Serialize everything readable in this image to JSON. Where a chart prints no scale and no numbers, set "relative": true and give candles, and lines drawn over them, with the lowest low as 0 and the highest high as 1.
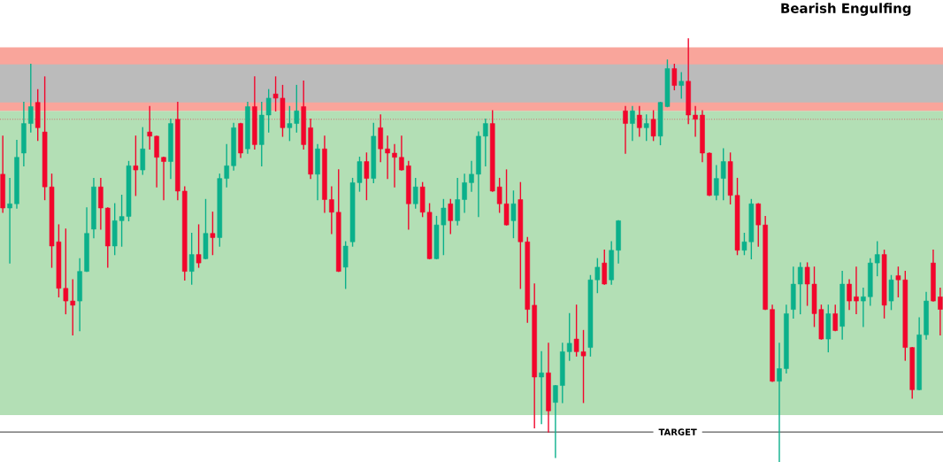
{
  "chart_data": {
    "type": "candlestick",
    "relative": true,
    "categories": [
      null,
      null,
      null,
      null,
      null,
      null,
      null,
      null,
      null,
      null,
      null,
      null,
      null,
      null,
      null,
      null,
      null,
      null,
      null,
      null,
      null,
      null,
      null,
      null,
      null,
      null,
      null,
      null,
      null,
      null,
      null,
      null,
      null,
      null,
      null,
      null,
      null,
      null,
      null,
      null,
      null,
      null,
      null,
      null,
      null,
      null,
      null,
      null,
      null,
      null,
      null,
      null,
      null,
      null,
      null,
      null,
      null,
      null,
      null,
      null,
      null,
      null,
      null,
      null,
      null,
      null,
      null,
      null,
      null,
      null,
      null,
      null,
      null,
      null,
      null,
      null,
      null,
      null,
      null,
      null,
      null,
      null,
      null,
      null,
      null,
      null,
      null,
      null,
      null,
      null,
      null,
      null,
      null,
      null,
      null,
      null,
      null,
      null,
      null,
      null,
      null,
      null,
      null,
      null,
      null,
      null,
      null,
      null,
      null,
      null,
      null,
      null,
      null,
      null,
      null,
      null,
      null,
      null,
      null,
      null,
      null,
      null,
      null,
      null,
      null,
      null,
      null,
      null,
      null,
      null,
      null,
      null,
      null,
      null,
      null
    ],
    "ohlc": [
      [
        0.68,
        0.77,
        0.59,
        0.6
      ],
      [
        0.6,
        0.67,
        0.47,
        0.61
      ],
      [
        0.61,
        0.76,
        0.6,
        0.72
      ],
      [
        0.73,
        0.85,
        0.7,
        0.8
      ],
      [
        0.8,
        0.94,
        0.78,
        0.84
      ],
      [
        0.85,
        0.88,
        0.76,
        0.79
      ],
      [
        0.78,
        0.91,
        0.62,
        0.65
      ],
      [
        0.65,
        0.68,
        0.46,
        0.51
      ],
      [
        0.52,
        0.56,
        0.39,
        0.41
      ],
      [
        0.41,
        0.55,
        0.35,
        0.38
      ],
      [
        0.38,
        0.43,
        0.3,
        0.37
      ],
      [
        0.38,
        0.48,
        0.31,
        0.45
      ],
      [
        0.45,
        0.6,
        0.45,
        0.54
      ],
      [
        0.55,
        0.67,
        0.53,
        0.65
      ],
      [
        0.65,
        0.67,
        0.55,
        0.6
      ],
      [
        0.6,
        0.6,
        0.46,
        0.51
      ],
      [
        0.51,
        0.61,
        0.49,
        0.57
      ],
      [
        0.57,
        0.63,
        0.51,
        0.58
      ],
      [
        0.58,
        0.71,
        0.57,
        0.7
      ],
      [
        0.7,
        0.77,
        0.63,
        0.69
      ],
      [
        0.69,
        0.79,
        0.68,
        0.74
      ],
      [
        0.78,
        0.84,
        0.74,
        0.77
      ],
      [
        0.77,
        0.77,
        0.65,
        0.72
      ],
      [
        0.72,
        0.72,
        0.62,
        0.71
      ],
      [
        0.71,
        0.81,
        0.67,
        0.8
      ],
      [
        0.81,
        0.85,
        0.62,
        0.64
      ],
      [
        0.64,
        0.65,
        0.43,
        0.45
      ],
      [
        0.45,
        0.54,
        0.42,
        0.49
      ],
      [
        0.49,
        0.56,
        0.46,
        0.47
      ],
      [
        0.48,
        0.62,
        0.48,
        0.54
      ],
      [
        0.54,
        0.59,
        0.49,
        0.53
      ],
      [
        0.53,
        0.68,
        0.51,
        0.67
      ],
      [
        0.67,
        0.75,
        0.65,
        0.7
      ],
      [
        0.7,
        0.8,
        0.69,
        0.79
      ],
      [
        0.8,
        0.8,
        0.72,
        0.73
      ],
      [
        0.74,
        0.85,
        0.73,
        0.84
      ],
      [
        0.84,
        0.91,
        0.74,
        0.75
      ],
      [
        0.75,
        0.85,
        0.7,
        0.82
      ],
      [
        0.82,
        0.88,
        0.78,
        0.86
      ],
      [
        0.87,
        0.91,
        0.83,
        0.86
      ],
      [
        0.86,
        0.89,
        0.77,
        0.79
      ],
      [
        0.79,
        0.84,
        0.76,
        0.8
      ],
      [
        0.8,
        0.89,
        0.78,
        0.83
      ],
      [
        0.84,
        0.9,
        0.74,
        0.75
      ],
      [
        0.79,
        0.81,
        0.67,
        0.68
      ],
      [
        0.68,
        0.75,
        0.62,
        0.74
      ],
      [
        0.74,
        0.77,
        0.59,
        0.62
      ],
      [
        0.62,
        0.65,
        0.54,
        0.59
      ],
      [
        0.59,
        0.69,
        0.45,
        0.45
      ],
      [
        0.46,
        0.52,
        0.41,
        0.51
      ],
      [
        0.52,
        0.67,
        0.51,
        0.66
      ],
      [
        0.66,
        0.72,
        0.64,
        0.71
      ],
      [
        0.71,
        0.73,
        0.62,
        0.67
      ],
      [
        0.67,
        0.8,
        0.66,
        0.77
      ],
      [
        0.79,
        0.82,
        0.71,
        0.74
      ],
      [
        0.74,
        0.77,
        0.67,
        0.73
      ],
      [
        0.73,
        0.75,
        0.65,
        0.72
      ],
      [
        0.72,
        0.77,
        0.69,
        0.69
      ],
      [
        0.7,
        0.71,
        0.55,
        0.61
      ],
      [
        0.61,
        0.67,
        0.6,
        0.65
      ],
      [
        0.65,
        0.66,
        0.58,
        0.59
      ],
      [
        0.59,
        0.61,
        0.48,
        0.48
      ],
      [
        0.48,
        0.58,
        0.48,
        0.56
      ],
      [
        0.56,
        0.62,
        0.49,
        0.6
      ],
      [
        0.61,
        0.62,
        0.54,
        0.57
      ],
      [
        0.57,
        0.67,
        0.56,
        0.62
      ],
      [
        0.62,
        0.68,
        0.59,
        0.66
      ],
      [
        0.66,
        0.71,
        0.64,
        0.68
      ],
      [
        0.68,
        0.78,
        0.58,
        0.77
      ],
      [
        0.77,
        0.81,
        0.7,
        0.8
      ],
      [
        0.8,
        0.83,
        0.64,
        0.64
      ],
      [
        0.65,
        0.67,
        0.59,
        0.61
      ],
      [
        0.61,
        0.69,
        0.56,
        0.56
      ],
      [
        0.57,
        0.64,
        0.53,
        0.61
      ],
      [
        0.62,
        0.66,
        0.41,
        0.52
      ],
      [
        0.52,
        0.53,
        0.33,
        0.36
      ],
      [
        0.37,
        0.42,
        0.08,
        0.2
      ],
      [
        0.2,
        0.26,
        0.09,
        0.21
      ],
      [
        0.21,
        0.28,
        0.07,
        0.12
      ],
      [
        0.14,
        0.18,
        0.01,
        0.18
      ],
      [
        0.18,
        0.28,
        0.14,
        0.26
      ],
      [
        0.26,
        0.35,
        0.24,
        0.28
      ],
      [
        0.29,
        0.37,
        0.25,
        0.26
      ],
      [
        0.26,
        0.31,
        0.14,
        0.25
      ],
      [
        0.27,
        0.44,
        0.25,
        0.43
      ],
      [
        0.43,
        0.48,
        0.4,
        0.46
      ],
      [
        0.47,
        0.5,
        0.42,
        0.42
      ],
      [
        0.43,
        0.52,
        0.42,
        0.5
      ],
      [
        0.5,
        0.57,
        0.47,
        0.57
      ],
      [
        0.83,
        0.84,
        0.73,
        0.8
      ],
      [
        0.8,
        0.84,
        0.76,
        0.83
      ],
      [
        0.82,
        0.84,
        0.77,
        0.79
      ],
      [
        0.79,
        0.82,
        0.76,
        0.8
      ],
      [
        0.81,
        0.83,
        0.76,
        0.77
      ],
      [
        0.77,
        0.85,
        0.75,
        0.85
      ],
      [
        0.84,
        0.95,
        0.84,
        0.93
      ],
      [
        0.93,
        0.94,
        0.88,
        0.89
      ],
      [
        0.89,
        0.92,
        0.86,
        0.9
      ],
      [
        0.9,
        1.0,
        0.8,
        0.82
      ],
      [
        0.82,
        0.84,
        0.77,
        0.81
      ],
      [
        0.82,
        0.83,
        0.71,
        0.73
      ],
      [
        0.73,
        0.73,
        0.63,
        0.63
      ],
      [
        0.63,
        0.7,
        0.62,
        0.67
      ],
      [
        0.67,
        0.74,
        0.62,
        0.71
      ],
      [
        0.71,
        0.73,
        0.61,
        0.63
      ],
      [
        0.63,
        0.67,
        0.49,
        0.5
      ],
      [
        0.5,
        0.54,
        0.49,
        0.52
      ],
      [
        0.52,
        0.62,
        0.48,
        0.61
      ],
      [
        0.61,
        0.61,
        0.51,
        0.56
      ],
      [
        0.56,
        0.58,
        0.36,
        0.36
      ],
      [
        0.36,
        0.37,
        0.19,
        0.19
      ],
      [
        0.19,
        0.28,
        0.0,
        0.22
      ],
      [
        0.22,
        0.37,
        0.21,
        0.35
      ],
      [
        0.36,
        0.46,
        0.34,
        0.42
      ],
      [
        0.42,
        0.47,
        0.35,
        0.46
      ],
      [
        0.46,
        0.47,
        0.37,
        0.42
      ],
      [
        0.42,
        0.46,
        0.32,
        0.35
      ],
      [
        0.36,
        0.37,
        0.29,
        0.29
      ],
      [
        0.29,
        0.37,
        0.26,
        0.35
      ],
      [
        0.35,
        0.37,
        0.31,
        0.31
      ],
      [
        0.32,
        0.45,
        0.29,
        0.42
      ],
      [
        0.42,
        0.43,
        0.36,
        0.38
      ],
      [
        0.39,
        0.46,
        0.35,
        0.38
      ],
      [
        0.38,
        0.41,
        0.32,
        0.39
      ],
      [
        0.39,
        0.48,
        0.37,
        0.47
      ],
      [
        0.47,
        0.52,
        0.44,
        0.49
      ],
      [
        0.49,
        0.5,
        0.34,
        0.37
      ],
      [
        0.38,
        0.44,
        0.36,
        0.43
      ],
      [
        0.44,
        0.46,
        0.39,
        0.43
      ],
      [
        0.43,
        0.45,
        0.24,
        0.27
      ],
      [
        0.27,
        0.27,
        0.15,
        0.17
      ],
      [
        0.17,
        0.34,
        0.17,
        0.3
      ],
      [
        0.3,
        0.4,
        0.29,
        0.38
      ],
      [
        0.47,
        0.5,
        0.38,
        0.38
      ],
      [
        0.39,
        0.41,
        0.3,
        0.36
      ]
    ],
    "colors": [
      "#f2062c",
      "#0bb08b",
      "#0bb08b",
      "#0bb08b",
      "#0bb08b",
      "#f2062c",
      "#f2062c",
      "#f2062c",
      "#f2062c",
      "#f2062c",
      "#f2062c",
      "#0bb08b",
      "#0bb08b",
      "#0bb08b",
      "#f2062c",
      "#f2062c",
      "#0bb08b",
      "#0bb08b",
      "#0bb08b",
      "#f2062c",
      "#0bb08b",
      "#f2062c",
      "#f2062c",
      "#f2062c",
      "#0bb08b",
      "#f2062c",
      "#f2062c",
      "#0bb08b",
      "#f2062c",
      "#0bb08b",
      "#f2062c",
      "#0bb08b",
      "#0bb08b",
      "#0bb08b",
      "#f2062c",
      "#0bb08b",
      "#f2062c",
      "#0bb08b",
      "#0bb08b",
      "#f2062c",
      "#f2062c",
      "#0bb08b",
      "#0bb08b",
      "#f2062c",
      "#f2062c",
      "#0bb08b",
      "#f2062c",
      "#f2062c",
      "#f2062c",
      "#0bb08b",
      "#0bb08b",
      "#0bb08b",
      "#f2062c",
      "#0bb08b",
      "#f2062c",
      "#f2062c",
      "#f2062c",
      "#f2062c",
      "#f2062c",
      "#0bb08b",
      "#f2062c",
      "#f2062c",
      "#0bb08b",
      "#0bb08b",
      "#f2062c",
      "#0bb08b",
      "#0bb08b",
      "#0bb08b",
      "#0bb08b",
      "#0bb08b",
      "#f2062c",
      "#f2062c",
      "#f2062c",
      "#0bb08b",
      "#f2062c",
      "#f2062c",
      "#f2062c",
      "#0bb08b",
      "#f2062c",
      "#0bb08b",
      "#0bb08b",
      "#0bb08b",
      "#f2062c",
      "#f2062c",
      "#0bb08b",
      "#0bb08b",
      "#f2062c",
      "#0bb08b",
      "#0bb08b",
      "#f2062c",
      "#0bb08b",
      "#f2062c",
      "#0bb08b",
      "#f2062c",
      "#0bb08b",
      "#0bb08b",
      "#f2062c",
      "#0bb08b",
      "#f2062c",
      "#f2062c",
      "#f2062c",
      "#f2062c",
      "#0bb08b",
      "#0bb08b",
      "#f2062c",
      "#f2062c",
      "#0bb08b",
      "#0bb08b",
      "#f2062c",
      "#f2062c",
      "#f2062c",
      "#0bb08b",
      "#0bb08b",
      "#0bb08b",
      "#0bb08b",
      "#f2062c",
      "#f2062c",
      "#f2062c",
      "#0bb08b",
      "#f2062c",
      "#0bb08b",
      "#f2062c",
      "#f2062c",
      "#0bb08b",
      "#0bb08b",
      "#0bb08b",
      "#f2062c",
      "#0bb08b",
      "#f2062c",
      "#f2062c",
      "#f2062c",
      "#0bb08b",
      "#0bb08b",
      "#f2062c",
      "#f2062c"
    ],
    "bands": [
      {
        "axis": "y",
        "from": 0.11,
        "to": 0.83,
        "color": "#b3dfb5"
      },
      {
        "axis": "y",
        "from": 0.83,
        "to": 0.98,
        "color": "#f9a59b"
      },
      {
        "axis": "y",
        "from": 0.85,
        "to": 0.94,
        "color": "#bbbbbb"
      }
    ],
    "ref_lines": [
      {
        "axis": "y",
        "value": 0.81,
        "color": "#e0304a",
        "line_style": "dotted"
      },
      {
        "axis": "y",
        "value": 0.07,
        "label": "TARGET",
        "color": "#000000",
        "line_style": "solid"
      }
    ],
    "annotations": [
      "Bearish Engulfing"
    ]
  }
}
